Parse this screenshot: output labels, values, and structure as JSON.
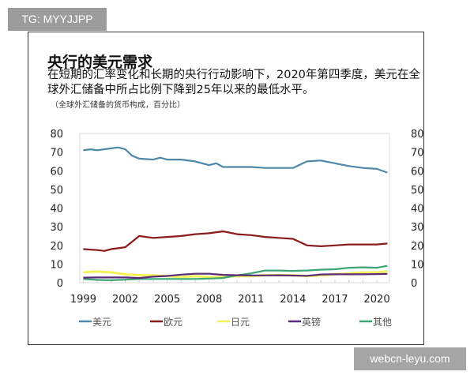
{
  "badge": "TG: MYYJJPP",
  "watermark": "webcn-leyu.com",
  "chart_data": {
    "type": "line",
    "title": "央行的美元需求",
    "subtitle": "在短期的汇率变化和长期的央行行动影响下，2020年第四季度，美元在全球外汇储备中所占比例下降到25年以来的最低水平。",
    "note": "（全球外汇储备的货币构成，百分比）",
    "xlim": [
      1999,
      2020.75
    ],
    "ylim": [
      0,
      80
    ],
    "yticks": [
      0,
      10,
      20,
      30,
      40,
      50,
      60,
      70,
      80
    ],
    "xticks": [
      1999,
      2002,
      2005,
      2008,
      2011,
      2014,
      2017,
      2020
    ],
    "dual_y_axis": true,
    "grid": false,
    "legend_position": "bottom",
    "series": [
      {
        "name": "美元",
        "color": "#4f87a8",
        "x": [
          1999,
          1999.5,
          2000,
          2001,
          2001.5,
          2002,
          2002.5,
          2003,
          2004,
          2004.5,
          2005,
          2006,
          2007,
          2008,
          2008.5,
          2009,
          2010,
          2011,
          2012,
          2013,
          2014,
          2015,
          2016,
          2017,
          2018,
          2019,
          2020,
          2020.75
        ],
        "y": [
          71,
          71.5,
          71,
          72,
          72.5,
          71.5,
          68,
          66.5,
          66,
          67,
          66,
          66,
          65,
          63,
          64,
          62,
          62,
          62,
          61.5,
          61.5,
          61.5,
          65,
          65.5,
          64,
          62.5,
          61.5,
          61,
          59
        ]
      },
      {
        "name": "欧元",
        "color": "#8b1a1a",
        "x": [
          1999,
          2000,
          2000.5,
          2001,
          2002,
          2002.5,
          2003,
          2004,
          2005,
          2006,
          2007,
          2008,
          2009,
          2010,
          2011,
          2012,
          2013,
          2014,
          2015,
          2016,
          2017,
          2018,
          2019,
          2020,
          2020.75
        ],
        "y": [
          18,
          17.5,
          17,
          18,
          19,
          22,
          25,
          24,
          24.5,
          25,
          26,
          26.5,
          27.5,
          26,
          25.5,
          24.5,
          24,
          23.5,
          20,
          19.5,
          20,
          20.5,
          20.5,
          20.5,
          21
        ]
      },
      {
        "name": "日元",
        "color": "#f2f25a",
        "x": [
          1999,
          2000,
          2001,
          2002,
          2003,
          2004,
          2005,
          2006,
          2007,
          2008,
          2009,
          2010,
          2011,
          2012,
          2013,
          2014,
          2015,
          2016,
          2017,
          2018,
          2019,
          2020,
          2020.75
        ],
        "y": [
          5.5,
          6,
          5.5,
          4.5,
          4,
          4,
          3.5,
          3,
          3.5,
          3,
          3,
          3.5,
          3.5,
          4,
          4,
          4,
          3.5,
          4,
          4.5,
          5,
          5.5,
          5.5,
          6
        ]
      },
      {
        "name": "英镑",
        "color": "#5b2a7a",
        "x": [
          1999,
          2000,
          2001,
          2002,
          2003,
          2004,
          2005,
          2006,
          2007,
          2008,
          2009,
          2010,
          2011,
          2012,
          2013,
          2014,
          2015,
          2016,
          2017,
          2018,
          2019,
          2020,
          2020.75
        ],
        "y": [
          2.7,
          2.8,
          2.8,
          2.8,
          2.5,
          3.2,
          3.6,
          4.3,
          4.8,
          4.8,
          4.2,
          4,
          3.9,
          3.9,
          4,
          3.8,
          3.7,
          4.4,
          4.5,
          4.5,
          4.5,
          4.6,
          4.7
        ]
      },
      {
        "name": "其他",
        "color": "#3aa675",
        "x": [
          1999,
          2000,
          2001,
          2002,
          2003,
          2004,
          2005,
          2006,
          2007,
          2008,
          2009,
          2010,
          2011,
          2012,
          2013,
          2014,
          2015,
          2016,
          2017,
          2018,
          2019,
          2020,
          2020.75
        ],
        "y": [
          2,
          1.5,
          1.3,
          1.6,
          2,
          2,
          2,
          2,
          2,
          2.2,
          2.5,
          4,
          5,
          6.5,
          6.5,
          6.3,
          6.5,
          7,
          7.2,
          8,
          8.2,
          8,
          9
        ]
      }
    ]
  }
}
